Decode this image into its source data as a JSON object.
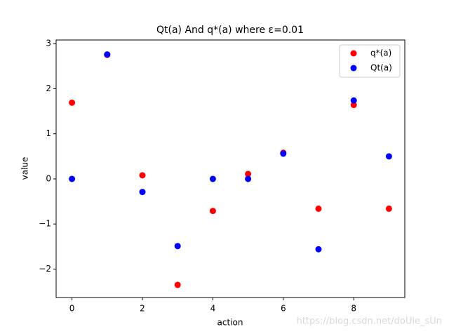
{
  "chart_data": {
    "type": "scatter",
    "title": "Qt(a) And q*(a) where ε=0.01",
    "x_label": "action",
    "y_label": "value",
    "x": [
      0,
      1,
      2,
      3,
      4,
      5,
      6,
      7,
      8,
      9
    ],
    "series": [
      {
        "name": "q*(a)",
        "color": "#ff0000",
        "values": [
          1.69,
          2.75,
          0.08,
          -2.35,
          -0.71,
          0.11,
          0.58,
          -0.66,
          1.64,
          -0.66
        ]
      },
      {
        "name": "Qt(a)",
        "color": "#0000ff",
        "values": [
          0,
          2.76,
          -0.29,
          -1.49,
          0,
          0,
          0.56,
          -1.56,
          1.74,
          0.5
        ]
      }
    ],
    "xlim": [
      -0.45,
      9.45
    ],
    "xticks": [
      0,
      2,
      4,
      6,
      8
    ],
    "ylim": [
      -2.63,
      3.08
    ],
    "yticks": [
      {
        "value": -2,
        "label": "−2"
      },
      {
        "value": -1,
        "label": "−1"
      },
      0,
      1,
      2,
      3
    ],
    "legend": "upper right",
    "watermark": "https://blog.csdn.net/doUle_sUn"
  }
}
